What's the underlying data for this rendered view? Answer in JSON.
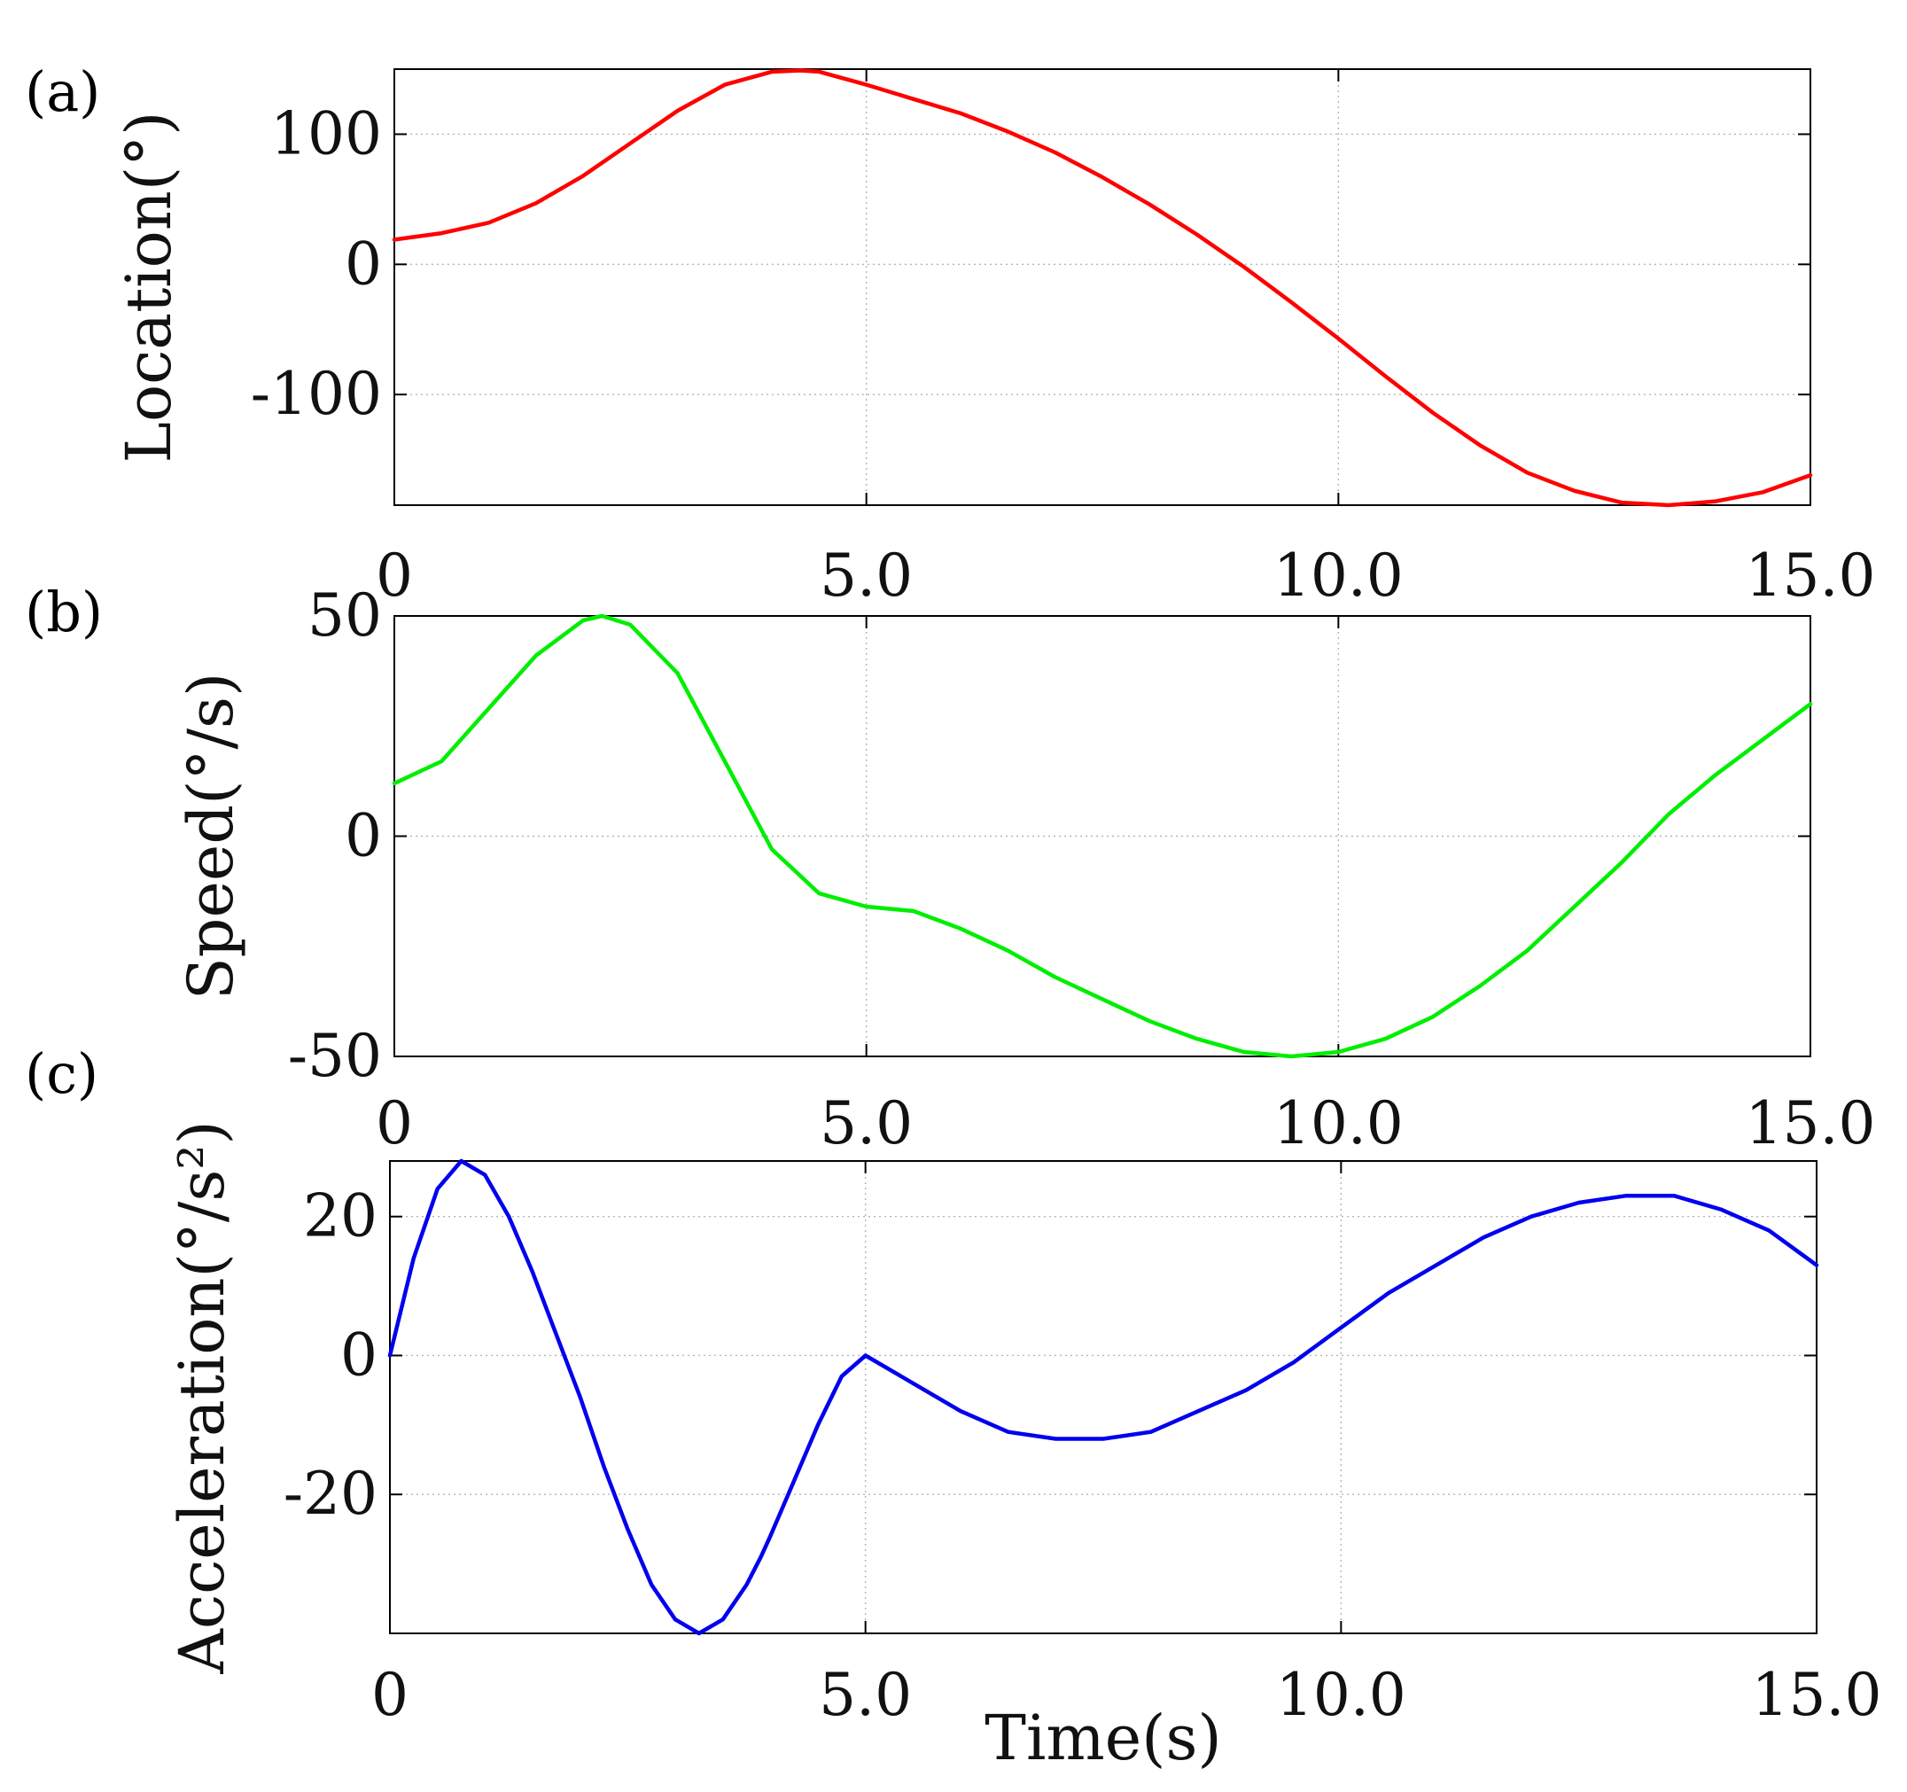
{
  "chart_data": [
    {
      "type": "line",
      "panel_label": "(a)",
      "xlabel": "",
      "ylabel": "Location(°)",
      "xlim": [
        0,
        15
      ],
      "ylim": [
        -185,
        150
      ],
      "x_ticks": [
        {
          "value": 0,
          "label": "0"
        },
        {
          "value": 5,
          "label": "5.0"
        },
        {
          "value": 10,
          "label": "10.0"
        },
        {
          "value": 15,
          "label": "15.0"
        }
      ],
      "y_ticks": [
        {
          "value": 100,
          "label": "100"
        },
        {
          "value": 0,
          "label": "0"
        },
        {
          "value": -100,
          "label": "-100"
        }
      ],
      "grid": true,
      "series": [
        {
          "name": "Location",
          "color": "#ff0000",
          "x": [
            0,
            0.5,
            1,
            1.5,
            2,
            2.5,
            3,
            3.5,
            4,
            4.3,
            4.5,
            5,
            5.5,
            6,
            6.5,
            7,
            7.5,
            8,
            8.5,
            9,
            9.5,
            10,
            10.5,
            11,
            11.5,
            12,
            12.5,
            13,
            13.5,
            14,
            14.5,
            15
          ],
          "values": [
            19,
            24,
            32,
            47,
            68,
            93,
            118,
            138,
            148,
            149,
            148,
            138,
            127,
            116,
            102,
            86,
            67,
            46,
            23,
            -2,
            -29,
            -57,
            -86,
            -114,
            -139,
            -160,
            -174,
            -183,
            -185,
            -182,
            -175,
            -162
          ]
        }
      ]
    },
    {
      "type": "line",
      "panel_label": "(b)",
      "xlabel": "",
      "ylabel": "Speed(°/s)",
      "xlim": [
        0,
        15
      ],
      "ylim": [
        -50,
        50
      ],
      "x_ticks": [
        {
          "value": 0,
          "label": "0"
        },
        {
          "value": 5,
          "label": "5.0"
        },
        {
          "value": 10,
          "label": "10.0"
        },
        {
          "value": 15,
          "label": "15.0"
        }
      ],
      "y_ticks": [
        {
          "value": 50,
          "label": "50"
        },
        {
          "value": 0,
          "label": "0"
        },
        {
          "value": -50,
          "label": "-50"
        }
      ],
      "grid": true,
      "series": [
        {
          "name": "Speed",
          "color": "#00ee00",
          "x": [
            0,
            0.5,
            1,
            1.5,
            2,
            2.2,
            2.5,
            3,
            3.5,
            4,
            4.5,
            5,
            5.5,
            6,
            6.5,
            7,
            7.5,
            8,
            8.5,
            9,
            9.5,
            10,
            10.5,
            11,
            11.5,
            12,
            12.5,
            13,
            13.5,
            14,
            14.5,
            15
          ],
          "values": [
            12,
            17,
            29,
            41,
            49,
            50,
            48,
            37,
            17,
            -3,
            -13,
            -16,
            -17,
            -21,
            -26,
            -32,
            -37,
            -42,
            -46,
            -49,
            -50,
            -49,
            -46,
            -41,
            -34,
            -26,
            -16,
            -6,
            5,
            14,
            22,
            30
          ]
        }
      ]
    },
    {
      "type": "line",
      "panel_label": "(c)",
      "xlabel": "Time(s)",
      "ylabel": "Acceleration(°/s²)",
      "xlim": [
        0,
        15
      ],
      "ylim": [
        -40,
        28
      ],
      "x_ticks": [
        {
          "value": 0,
          "label": "0"
        },
        {
          "value": 5,
          "label": "5.0"
        },
        {
          "value": 10,
          "label": "10.0"
        },
        {
          "value": 15,
          "label": "15.0"
        }
      ],
      "y_ticks": [
        {
          "value": 20,
          "label": "20"
        },
        {
          "value": 0,
          "label": "0"
        },
        {
          "value": -20,
          "label": "-20"
        }
      ],
      "grid": true,
      "series": [
        {
          "name": "Acceleration",
          "color": "#0000ee",
          "x": [
            0,
            0.25,
            0.5,
            0.75,
            1.0,
            1.25,
            1.5,
            1.75,
            2.0,
            2.25,
            2.5,
            2.75,
            3.0,
            3.25,
            3.5,
            3.75,
            3.9,
            4.0,
            4.25,
            4.5,
            4.75,
            5.0,
            5.5,
            6.0,
            6.5,
            7.0,
            7.5,
            8.0,
            8.5,
            9.0,
            9.5,
            10.0,
            10.5,
            11.0,
            11.5,
            12.0,
            12.5,
            13.0,
            13.5,
            14.0,
            14.5,
            15.0
          ],
          "values": [
            0,
            14,
            24,
            28,
            26,
            20,
            12,
            3,
            -6,
            -16,
            -25,
            -33,
            -38,
            -40,
            -38,
            -33,
            -29,
            -26,
            -18,
            -10,
            -3,
            0,
            -4,
            -8,
            -11,
            -12,
            -12,
            -11,
            -8,
            -5,
            -1,
            4,
            9,
            13,
            17,
            20,
            22,
            23,
            23,
            21,
            18,
            13
          ]
        }
      ]
    }
  ]
}
